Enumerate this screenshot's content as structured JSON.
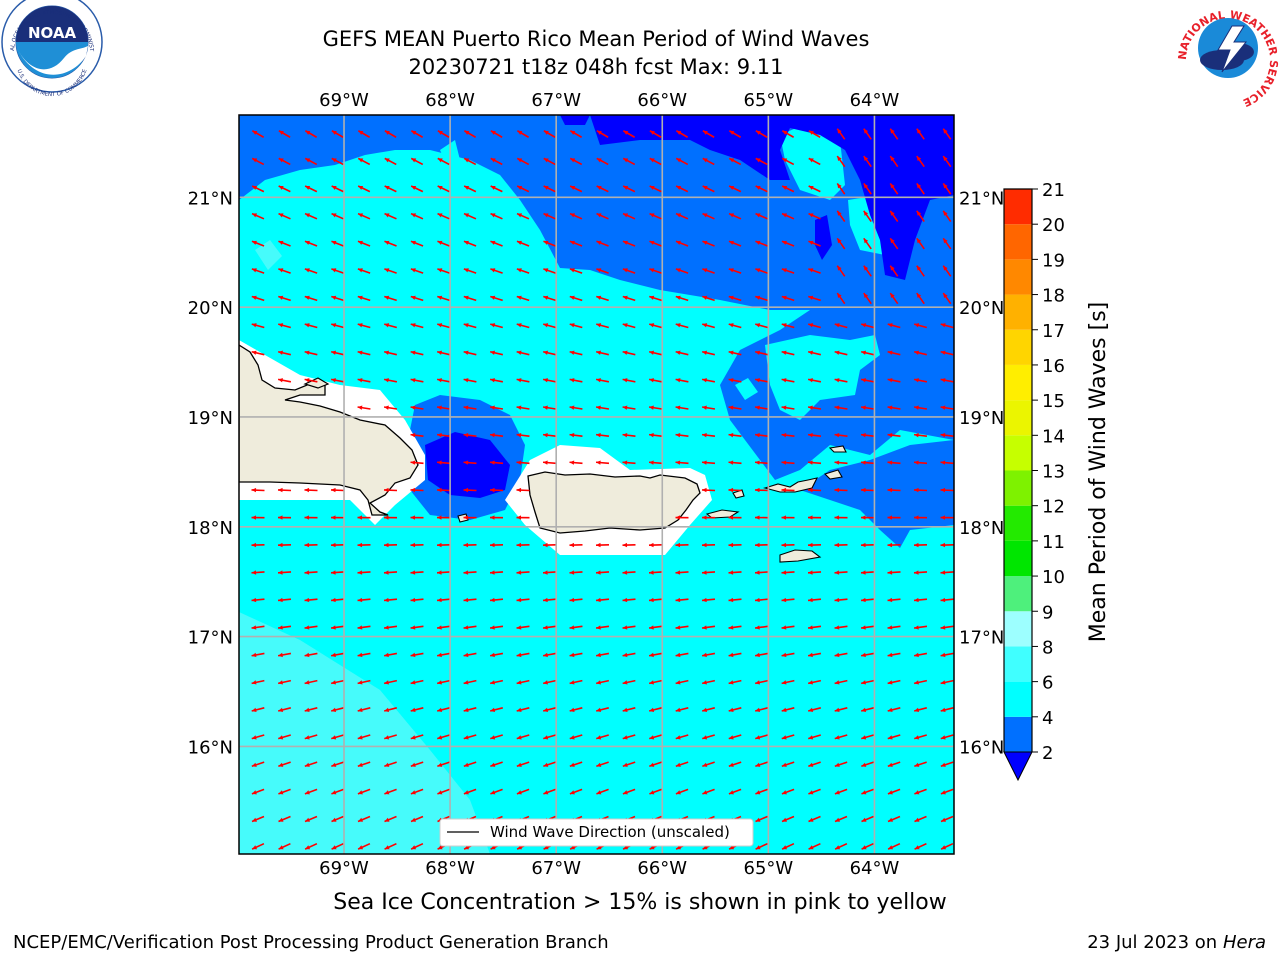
{
  "header": {
    "title_line1": "GEFS MEAN Puerto Rico Mean Period of Wind Waves",
    "title_line2": "20230721 t18z 048h fcst   Max: 9.11"
  },
  "map": {
    "lon_ticks": [
      "69°W",
      "68°W",
      "67°W",
      "66°W",
      "65°W",
      "64°W"
    ],
    "lat_ticks": [
      "21°N",
      "20°N",
      "19°N",
      "18°N",
      "17°N",
      "16°N"
    ],
    "lon_values": [
      -69,
      -68,
      -67,
      -66,
      -65,
      -64
    ],
    "lat_values": [
      21,
      20,
      19,
      18,
      17,
      16
    ],
    "extent": {
      "lon_min": -69.99,
      "lon_max": -63.25,
      "lat_min": 15.02,
      "lat_max": 21.75
    },
    "legend_label": "Wind Wave Direction (unscaled)",
    "arrow_color": "#ff0000",
    "land_color": "#efecdc",
    "grid": true
  },
  "colorbar": {
    "label": "Mean Period of Wind Waves [s]",
    "ticks": [
      "21",
      "20",
      "19",
      "18",
      "17",
      "16",
      "15",
      "14",
      "13",
      "12",
      "11",
      "10",
      "9",
      "8",
      "6",
      "4",
      "2"
    ],
    "colors": [
      "#0000ff",
      "#0070ff",
      "#00ffff",
      "#40ffff",
      "#9dffff",
      "#4ef07c",
      "#00e600",
      "#23ea00",
      "#7ef200",
      "#c6ff00",
      "#ebf500",
      "#ffee00",
      "#ffd500",
      "#ffb100",
      "#ff8800",
      "#ff6600",
      "#ff2c00",
      "#ff0000"
    ]
  },
  "chart_data": {
    "type": "heatmap",
    "variable": "Mean Period of Wind Waves",
    "units": "s",
    "levels": [
      2,
      4,
      6,
      8,
      9,
      10,
      11,
      12,
      13,
      14,
      15,
      16,
      17,
      18,
      19,
      20,
      21
    ],
    "max_value": 9.11,
    "forecast": "20230721 t18z 048h fcst"
  },
  "subtitle": "Sea Ice Concentration > 15% is shown in pink to yellow",
  "footer": {
    "left": "NCEP/EMC/Verification Post Processing Product Generation Branch",
    "right_prefix": "23 Jul 2023 on ",
    "right_host": "Hera"
  },
  "logos": {
    "noaa_text": "NOAA",
    "noaa_ring_top": "NATIONAL OCEANIC AND ATMOSPHERIC ADMINISTRATION",
    "noaa_ring_bottom": "U.S. DEPARTMENT OF COMMERCE",
    "nws_ring": "NATIONAL WEATHER SERVICE"
  }
}
